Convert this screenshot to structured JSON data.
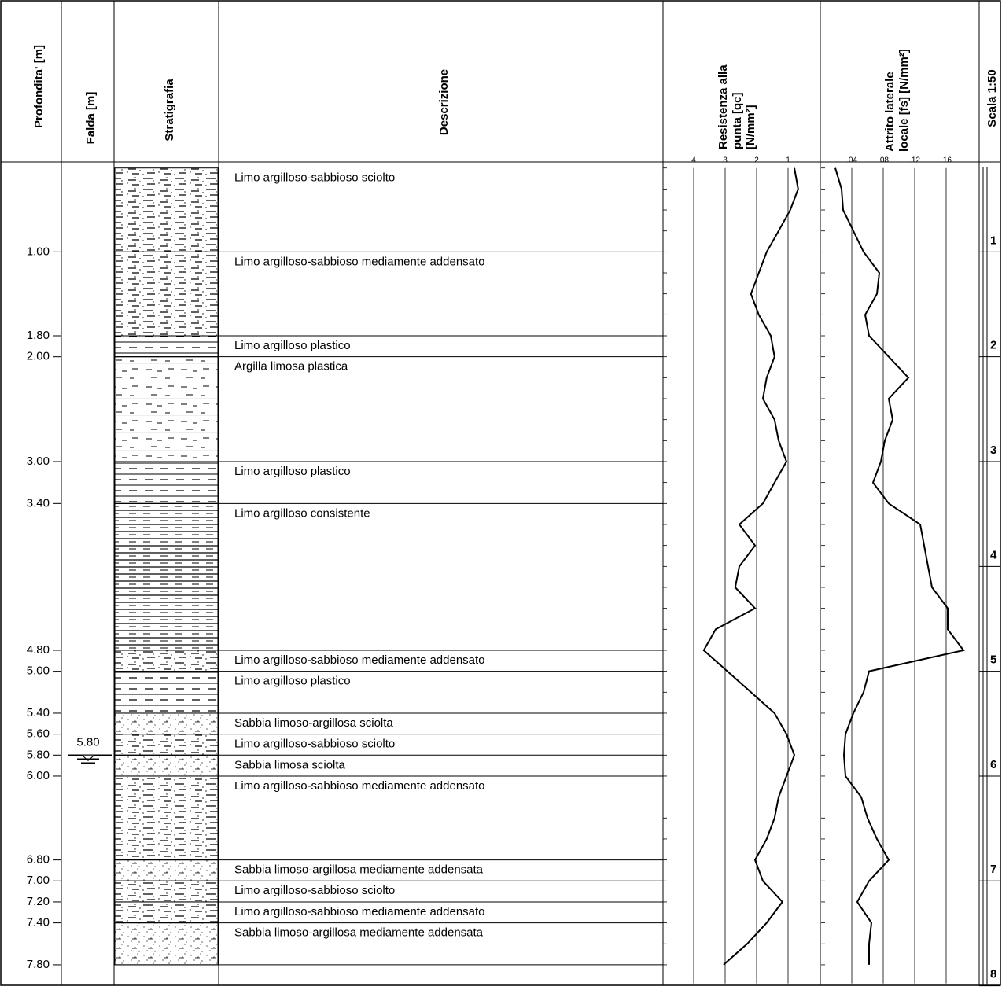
{
  "header": {
    "depth": "Profondita' [m]",
    "water": "Falda [m]",
    "stratigraphy": "Stratigrafia",
    "description": "Descrizione",
    "qc_title": [
      "Resistenza alla",
      "punta [qc]",
      "[N/mm²]"
    ],
    "fs_title": [
      "Attrito laterale",
      "locale [fs] [N/mm²]"
    ],
    "scale": "Scala 1:50"
  },
  "depth_lim": [
    0.2,
    8
  ],
  "layers": [
    {
      "bottom": {
        "value": 1,
        "label": "1.00"
      },
      "description": "Limo argilloso-sabbioso sciolto"
    },
    {
      "bottom": {
        "value": 1.8,
        "label": "1.80"
      },
      "description": "Limo argilloso-sabbioso mediamente addensato"
    },
    {
      "bottom": {
        "value": 2,
        "label": "2.00"
      },
      "description": "Limo argilloso plastico"
    },
    {
      "bottom": {
        "value": 3,
        "label": "3.00"
      },
      "description": "Argilla limosa plastica"
    },
    {
      "bottom": {
        "value": 3.4,
        "label": "3.40"
      },
      "description": "Limo argilloso plastico"
    },
    {
      "bottom": {
        "value": 4.8,
        "label": "4.80"
      },
      "description": "Limo argilloso consistente"
    },
    {
      "bottom": {
        "value": 5,
        "label": "5.00"
      },
      "description": "Limo argilloso-sabbioso mediamente addensato"
    },
    {
      "bottom": {
        "value": 5.4,
        "label": "5.40"
      },
      "description": "Limo argilloso plastico"
    },
    {
      "bottom": {
        "value": 5.6,
        "label": "5.60"
      },
      "description": "Sabbia limoso-argillosa sciolta"
    },
    {
      "bottom": {
        "value": 5.8,
        "label": "5.80"
      },
      "description": "Limo argilloso-sabbioso sciolto"
    },
    {
      "bottom": {
        "value": 6,
        "label": "6.00"
      },
      "description": "Sabbia limosa sciolta"
    },
    {
      "bottom": {
        "value": 6.8,
        "label": "6.80"
      },
      "description": "Limo argilloso-sabbioso mediamente addensato"
    },
    {
      "bottom": {
        "value": 7,
        "label": "7.00"
      },
      "description": "Sabbia limoso-argillosa mediamente addensata"
    },
    {
      "bottom": {
        "value": 7.2,
        "label": "7.20"
      },
      "description": "Limo argilloso-sabbioso sciolto"
    },
    {
      "bottom": {
        "value": 7.4,
        "label": "7.40"
      },
      "description": "Limo argilloso-sabbioso mediamente addensato"
    },
    {
      "bottom": {
        "value": 7.8,
        "label": "7.80"
      },
      "description": "Sabbia limoso-argillosa mediamente addensata"
    }
  ],
  "water_table": {
    "value": 5.8,
    "label": "5.80"
  },
  "scale_ticks": [
    1,
    2,
    3,
    4,
    5,
    6,
    7,
    8
  ],
  "depths": [
    0.2,
    0.4,
    0.6,
    0.8,
    1,
    1.2,
    1.4,
    1.6,
    1.8,
    2,
    2.2,
    2.4,
    2.6,
    2.8,
    3,
    3.2,
    3.4,
    3.6,
    3.8,
    4,
    4.2,
    4.4,
    4.6,
    4.8,
    5,
    5.2,
    5.4,
    5.6,
    5.8,
    6,
    6.2,
    6.4,
    6.6,
    6.8,
    7,
    7.2,
    7.4,
    7.6,
    7.8
  ],
  "qc": {
    "xlim": [
      5,
      0
    ],
    "xticks": [
      4,
      3,
      2,
      1
    ],
    "values": [
      0.8,
      0.68,
      0.93,
      1.3,
      1.68,
      1.93,
      2.18,
      1.93,
      1.55,
      1.43,
      1.68,
      1.8,
      1.43,
      1.3,
      1.05,
      1.43,
      1.8,
      2.55,
      2.05,
      2.55,
      2.68,
      2.05,
      3.3,
      3.68,
      2.93,
      2.18,
      1.43,
      1.05,
      0.8,
      1.05,
      1.3,
      1.43,
      1.68,
      2.05,
      1.8,
      1.18,
      1.68,
      2.3,
      3.05
    ]
  },
  "fs": {
    "xlim": [
      0,
      0.2
    ],
    "xticks": [
      {
        "value": 0.04,
        "label": ".04"
      },
      {
        "value": 0.08,
        "label": ".08"
      },
      {
        "value": 0.12,
        "label": ".12"
      },
      {
        "value": 0.16,
        "label": ".16"
      }
    ],
    "values": [
      0.019,
      0.027,
      0.029,
      0.042,
      0.055,
      0.075,
      0.072,
      0.057,
      0.062,
      0.087,
      0.112,
      0.087,
      0.092,
      0.082,
      0.077,
      0.067,
      0.087,
      0.127,
      0.132,
      0.137,
      0.142,
      0.162,
      0.162,
      0.182,
      0.062,
      0.055,
      0.042,
      0.032,
      0.03,
      0.032,
      0.052,
      0.06,
      0.072,
      0.087,
      0.062,
      0.047,
      0.065,
      0.062,
      0.062
    ]
  }
}
